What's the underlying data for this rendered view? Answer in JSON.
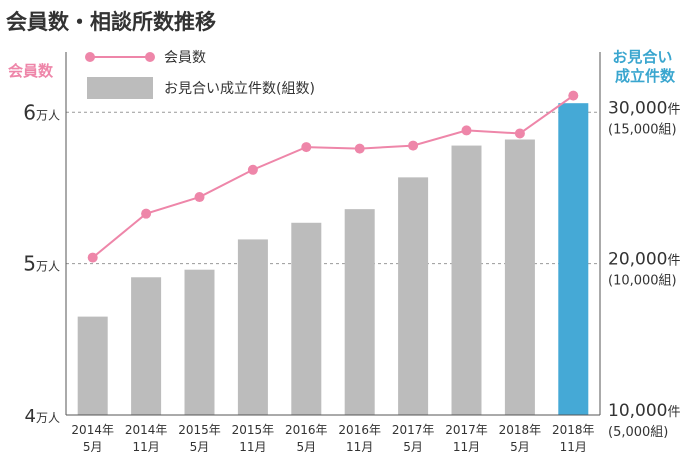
{
  "chart_data": {
    "type": "bar+line",
    "title": "会員数・相談所数推移",
    "categories": [
      [
        "2014年",
        "5月"
      ],
      [
        "2014年",
        "11月"
      ],
      [
        "2015年",
        "5月"
      ],
      [
        "2015年",
        "11月"
      ],
      [
        "2016年",
        "5月"
      ],
      [
        "2016年",
        "11月"
      ],
      [
        "2017年",
        "5月"
      ],
      [
        "2017年",
        "11月"
      ],
      [
        "2018年",
        "5月"
      ],
      [
        "2018年",
        "11月"
      ]
    ],
    "left_axis": {
      "label": "会員数",
      "ylim": [
        40000,
        62000
      ],
      "ticks": [
        {
          "value": 60000,
          "num": "6",
          "unit": "万人"
        },
        {
          "value": 50000,
          "num": "5",
          "unit": "万人"
        },
        {
          "value": 40000,
          "num": "4",
          "unit": "万人"
        }
      ]
    },
    "right_axis": {
      "label_lines": [
        "お見合い",
        "成立件数"
      ],
      "ylim": [
        10000,
        32000
      ],
      "ticks": [
        {
          "value": 30000,
          "main": "30,000",
          "unit": "件",
          "sub": "(15,000組)"
        },
        {
          "value": 20000,
          "main": "20,000",
          "unit": "件",
          "sub": "(10,000組)"
        },
        {
          "value": 10000,
          "main": "10,000",
          "unit": "件",
          "sub": "(5,000組)"
        }
      ]
    },
    "series": [
      {
        "name": "会員数",
        "kind": "line",
        "axis": "left",
        "color": "#ee86a9",
        "values": [
          50400,
          53300,
          54400,
          56200,
          57700,
          57600,
          57800,
          58800,
          58600,
          61100
        ]
      },
      {
        "name": "お見合い成立件数(組数)",
        "kind": "bar",
        "axis": "right",
        "color": "#bcbcbc",
        "highlight_color": "#45a9d6",
        "highlight_index": 9,
        "values": [
          16500,
          19100,
          19600,
          21600,
          22700,
          23600,
          25700,
          27800,
          28200,
          30600
        ]
      }
    ],
    "grid": "dashed at 6万人 and 5万人",
    "legend": "top-left"
  }
}
